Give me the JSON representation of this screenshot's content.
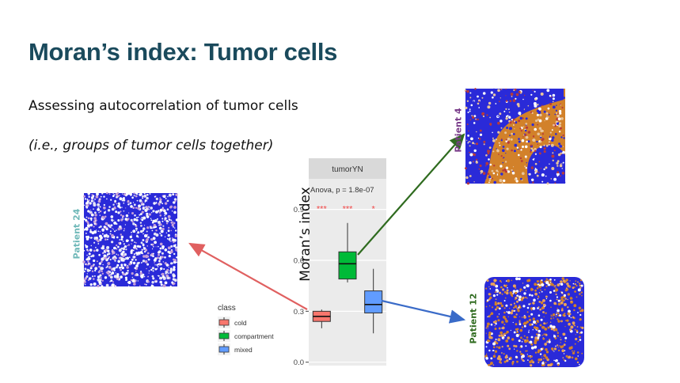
{
  "slide": {
    "title": "Moran’s index: Tumor cells",
    "subtitle": "Assessing autocorrelation of tumor cells",
    "note": "(i.e., groups of tumor cells together)"
  },
  "patients": {
    "left": "Patient 24",
    "top_right": "Patient 4",
    "bottom_right": "Patient 12"
  },
  "colors": {
    "title": "#1a4a5c",
    "cold": "#f8766d",
    "compartment": "#00ba38",
    "mixed": "#619cff",
    "tumor": "#d2812a",
    "immune": "#2a2ad8",
    "arrow_red": "#e06060",
    "arrow_green": "#2f6b1f",
    "arrow_blue": "#3a6bc8",
    "patient24_label": "#6fb8b8",
    "patient4_label": "#7a3d8a",
    "patient12_label": "#2f6b1f"
  },
  "chart_data": {
    "type": "box",
    "facet_label": "tumorYN",
    "annotation": "Anova, p = 1.8e-07",
    "ylabel": "Moran’s index",
    "ylim": [
      -0.02,
      1.08
    ],
    "yticks": [
      0.0,
      0.3,
      0.6,
      0.9
    ],
    "ytick_labels": [
      "0.0",
      "0.3",
      "0.6",
      "0.9"
    ],
    "legend_title": "class",
    "series": [
      {
        "name": "cold",
        "whisker_low": 0.2,
        "q1": 0.24,
        "median": 0.27,
        "q3": 0.3,
        "whisker_high": 0.31,
        "significance": "***"
      },
      {
        "name": "compartment",
        "whisker_low": 0.47,
        "q1": 0.49,
        "median": 0.58,
        "q3": 0.65,
        "whisker_high": 0.82,
        "significance": "***"
      },
      {
        "name": "mixed",
        "whisker_low": 0.17,
        "q1": 0.29,
        "median": 0.34,
        "q3": 0.42,
        "whisker_high": 0.55,
        "significance": "*"
      }
    ]
  }
}
